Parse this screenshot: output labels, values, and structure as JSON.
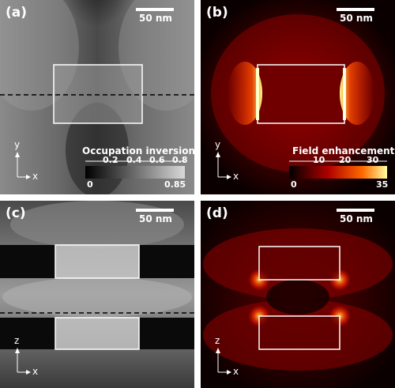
{
  "panels": {
    "a": {
      "label": "(a)",
      "scale_bar": "50 nm",
      "axes": {
        "vertical": "y",
        "horizontal": "x"
      },
      "colorbar": {
        "title": "Occupation inversion",
        "ticks": [
          "0.2",
          "0.4",
          "0.6",
          "0.8"
        ],
        "min_label": "0",
        "max_label": "0.85",
        "range": [
          0,
          0.85
        ]
      }
    },
    "b": {
      "label": "(b)",
      "scale_bar": "50 nm",
      "axes": {
        "vertical": "y",
        "horizontal": "x"
      },
      "colorbar": {
        "title": "Field enhancement",
        "ticks": [
          "10",
          "20",
          "30"
        ],
        "min_label": "0",
        "max_label": "35",
        "range": [
          0,
          35
        ]
      }
    },
    "c": {
      "label": "(c)",
      "scale_bar": "50 nm",
      "axes": {
        "vertical": "z",
        "horizontal": "x"
      }
    },
    "d": {
      "label": "(d)",
      "scale_bar": "50 nm",
      "axes": {
        "vertical": "z",
        "horizontal": "x"
      }
    }
  },
  "colors": {
    "inversion_low": "#000000",
    "inversion_high": "#d9d9d9",
    "field_low": "#000000",
    "field_mid": "#c00000",
    "field_high": "#ffff80",
    "outline": "#ffffff"
  }
}
